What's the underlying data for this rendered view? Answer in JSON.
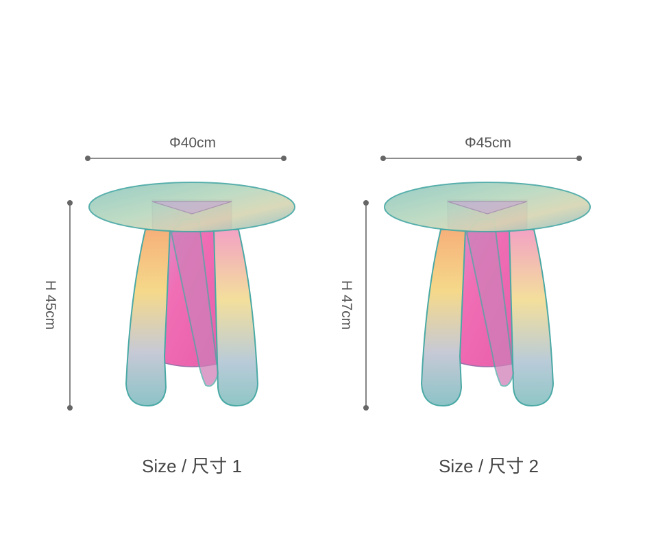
{
  "products": [
    {
      "diameter": "Φ40cm",
      "height": "H 45cm",
      "caption": "Size / 尺寸 1"
    },
    {
      "diameter": "Φ45cm",
      "height": "H 47cm",
      "caption": "Size / 尺寸 2"
    }
  ]
}
